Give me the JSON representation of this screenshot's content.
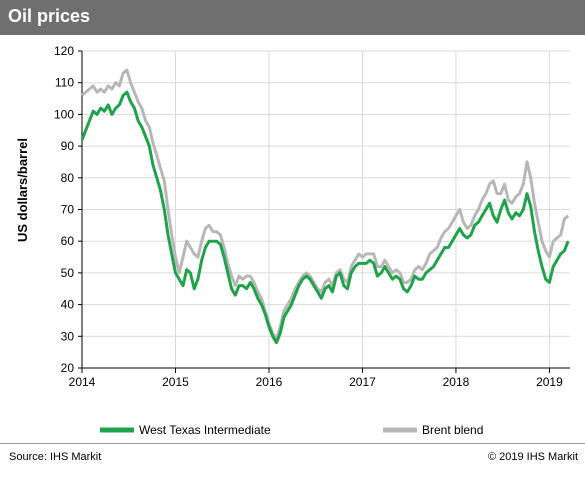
{
  "header": {
    "title": "Oil prices"
  },
  "footer": {
    "source": "Source: IHS Markit",
    "copyright": "© 2019 IHS Markit"
  },
  "colors": {
    "wti": "#1fa34a",
    "brent": "#b7b7b7",
    "header_bg": "#6f6f6f"
  },
  "chart_data": {
    "type": "line",
    "ylabel": "US dollars/barrel",
    "xlabel": "",
    "ylim": [
      20,
      120
    ],
    "xlim": [
      2014,
      2019.22
    ],
    "yticks": [
      20,
      30,
      40,
      50,
      60,
      70,
      80,
      90,
      100,
      110,
      120
    ],
    "xticks": [
      2014,
      2015,
      2016,
      2017,
      2018,
      2019
    ],
    "grid": true,
    "legend_position": "bottom",
    "series": [
      {
        "name": "West Texas Intermediate",
        "color": "#1fa34a",
        "points": [
          [
            2014.0,
            92
          ],
          [
            2014.04,
            95
          ],
          [
            2014.08,
            98
          ],
          [
            2014.12,
            101
          ],
          [
            2014.16,
            100
          ],
          [
            2014.2,
            102
          ],
          [
            2014.24,
            101
          ],
          [
            2014.28,
            103
          ],
          [
            2014.32,
            100
          ],
          [
            2014.36,
            102
          ],
          [
            2014.4,
            103
          ],
          [
            2014.44,
            106
          ],
          [
            2014.48,
            107
          ],
          [
            2014.52,
            104
          ],
          [
            2014.56,
            102
          ],
          [
            2014.6,
            98
          ],
          [
            2014.64,
            96
          ],
          [
            2014.68,
            93
          ],
          [
            2014.72,
            90
          ],
          [
            2014.76,
            84
          ],
          [
            2014.8,
            80
          ],
          [
            2014.84,
            76
          ],
          [
            2014.88,
            70
          ],
          [
            2014.92,
            62
          ],
          [
            2014.96,
            56
          ],
          [
            2015.0,
            50
          ],
          [
            2015.04,
            48
          ],
          [
            2015.08,
            46
          ],
          [
            2015.12,
            51
          ],
          [
            2015.16,
            50
          ],
          [
            2015.2,
            45
          ],
          [
            2015.24,
            48
          ],
          [
            2015.28,
            54
          ],
          [
            2015.32,
            58
          ],
          [
            2015.36,
            60
          ],
          [
            2015.4,
            60
          ],
          [
            2015.44,
            60
          ],
          [
            2015.48,
            59
          ],
          [
            2015.52,
            55
          ],
          [
            2015.56,
            50
          ],
          [
            2015.6,
            45
          ],
          [
            2015.64,
            43
          ],
          [
            2015.68,
            46
          ],
          [
            2015.72,
            46
          ],
          [
            2015.76,
            45
          ],
          [
            2015.8,
            47
          ],
          [
            2015.84,
            45
          ],
          [
            2015.88,
            42
          ],
          [
            2015.92,
            40
          ],
          [
            2015.96,
            37
          ],
          [
            2016.0,
            33
          ],
          [
            2016.04,
            30
          ],
          [
            2016.08,
            28
          ],
          [
            2016.12,
            31
          ],
          [
            2016.16,
            36
          ],
          [
            2016.2,
            38
          ],
          [
            2016.24,
            40
          ],
          [
            2016.28,
            43
          ],
          [
            2016.32,
            46
          ],
          [
            2016.36,
            48
          ],
          [
            2016.4,
            49
          ],
          [
            2016.44,
            48
          ],
          [
            2016.48,
            46
          ],
          [
            2016.52,
            44
          ],
          [
            2016.56,
            42
          ],
          [
            2016.6,
            45
          ],
          [
            2016.64,
            46
          ],
          [
            2016.68,
            44
          ],
          [
            2016.72,
            49
          ],
          [
            2016.76,
            50
          ],
          [
            2016.8,
            46
          ],
          [
            2016.84,
            45
          ],
          [
            2016.88,
            50
          ],
          [
            2016.92,
            52
          ],
          [
            2016.96,
            53
          ],
          [
            2017.0,
            53
          ],
          [
            2017.04,
            53
          ],
          [
            2017.08,
            54
          ],
          [
            2017.12,
            53
          ],
          [
            2017.16,
            49
          ],
          [
            2017.2,
            50
          ],
          [
            2017.24,
            52
          ],
          [
            2017.28,
            50
          ],
          [
            2017.32,
            48
          ],
          [
            2017.36,
            49
          ],
          [
            2017.4,
            48
          ],
          [
            2017.44,
            45
          ],
          [
            2017.48,
            44
          ],
          [
            2017.52,
            46
          ],
          [
            2017.56,
            49
          ],
          [
            2017.6,
            48
          ],
          [
            2017.64,
            48
          ],
          [
            2017.68,
            50
          ],
          [
            2017.72,
            51
          ],
          [
            2017.76,
            52
          ],
          [
            2017.8,
            54
          ],
          [
            2017.84,
            56
          ],
          [
            2017.88,
            58
          ],
          [
            2017.92,
            58
          ],
          [
            2017.96,
            60
          ],
          [
            2018.0,
            62
          ],
          [
            2018.04,
            64
          ],
          [
            2018.08,
            62
          ],
          [
            2018.12,
            61
          ],
          [
            2018.16,
            62
          ],
          [
            2018.2,
            65
          ],
          [
            2018.24,
            66
          ],
          [
            2018.28,
            68
          ],
          [
            2018.32,
            70
          ],
          [
            2018.36,
            72
          ],
          [
            2018.4,
            68
          ],
          [
            2018.44,
            66
          ],
          [
            2018.48,
            70
          ],
          [
            2018.52,
            73
          ],
          [
            2018.56,
            69
          ],
          [
            2018.6,
            67
          ],
          [
            2018.64,
            69
          ],
          [
            2018.68,
            68
          ],
          [
            2018.72,
            70
          ],
          [
            2018.76,
            75
          ],
          [
            2018.8,
            71
          ],
          [
            2018.84,
            63
          ],
          [
            2018.88,
            57
          ],
          [
            2018.92,
            52
          ],
          [
            2018.96,
            48
          ],
          [
            2019.0,
            47
          ],
          [
            2019.04,
            52
          ],
          [
            2019.08,
            54
          ],
          [
            2019.12,
            56
          ],
          [
            2019.16,
            57
          ],
          [
            2019.2,
            60
          ]
        ]
      },
      {
        "name": "Brent blend",
        "color": "#b7b7b7",
        "points": [
          [
            2014.0,
            106
          ],
          [
            2014.04,
            107
          ],
          [
            2014.08,
            108
          ],
          [
            2014.12,
            109
          ],
          [
            2014.16,
            107
          ],
          [
            2014.2,
            108
          ],
          [
            2014.24,
            107
          ],
          [
            2014.28,
            109
          ],
          [
            2014.32,
            108
          ],
          [
            2014.36,
            110
          ],
          [
            2014.4,
            109
          ],
          [
            2014.44,
            113
          ],
          [
            2014.48,
            114
          ],
          [
            2014.52,
            110
          ],
          [
            2014.56,
            107
          ],
          [
            2014.6,
            104
          ],
          [
            2014.64,
            102
          ],
          [
            2014.68,
            98
          ],
          [
            2014.72,
            96
          ],
          [
            2014.76,
            91
          ],
          [
            2014.8,
            87
          ],
          [
            2014.84,
            83
          ],
          [
            2014.88,
            79
          ],
          [
            2014.92,
            70
          ],
          [
            2014.96,
            62
          ],
          [
            2015.0,
            55
          ],
          [
            2015.04,
            50
          ],
          [
            2015.08,
            55
          ],
          [
            2015.12,
            60
          ],
          [
            2015.16,
            58
          ],
          [
            2015.2,
            56
          ],
          [
            2015.24,
            55
          ],
          [
            2015.28,
            60
          ],
          [
            2015.32,
            64
          ],
          [
            2015.36,
            65
          ],
          [
            2015.4,
            63
          ],
          [
            2015.44,
            63
          ],
          [
            2015.48,
            62
          ],
          [
            2015.52,
            58
          ],
          [
            2015.56,
            53
          ],
          [
            2015.6,
            49
          ],
          [
            2015.64,
            46
          ],
          [
            2015.68,
            49
          ],
          [
            2015.72,
            48
          ],
          [
            2015.76,
            49
          ],
          [
            2015.8,
            49
          ],
          [
            2015.84,
            47
          ],
          [
            2015.88,
            44
          ],
          [
            2015.92,
            42
          ],
          [
            2015.96,
            38
          ],
          [
            2016.0,
            34
          ],
          [
            2016.04,
            31
          ],
          [
            2016.08,
            29
          ],
          [
            2016.12,
            33
          ],
          [
            2016.16,
            38
          ],
          [
            2016.2,
            40
          ],
          [
            2016.24,
            42
          ],
          [
            2016.28,
            45
          ],
          [
            2016.32,
            47
          ],
          [
            2016.36,
            49
          ],
          [
            2016.4,
            50
          ],
          [
            2016.44,
            49
          ],
          [
            2016.48,
            47
          ],
          [
            2016.52,
            45
          ],
          [
            2016.56,
            44
          ],
          [
            2016.6,
            47
          ],
          [
            2016.64,
            48
          ],
          [
            2016.68,
            46
          ],
          [
            2016.72,
            50
          ],
          [
            2016.76,
            51
          ],
          [
            2016.8,
            48
          ],
          [
            2016.84,
            47
          ],
          [
            2016.88,
            52
          ],
          [
            2016.92,
            54
          ],
          [
            2016.96,
            56
          ],
          [
            2017.0,
            55
          ],
          [
            2017.04,
            56
          ],
          [
            2017.08,
            56
          ],
          [
            2017.12,
            56
          ],
          [
            2017.16,
            52
          ],
          [
            2017.2,
            52
          ],
          [
            2017.24,
            54
          ],
          [
            2017.28,
            52
          ],
          [
            2017.32,
            50
          ],
          [
            2017.36,
            51
          ],
          [
            2017.4,
            50
          ],
          [
            2017.44,
            47
          ],
          [
            2017.48,
            47
          ],
          [
            2017.52,
            48
          ],
          [
            2017.56,
            51
          ],
          [
            2017.6,
            52
          ],
          [
            2017.64,
            51
          ],
          [
            2017.68,
            53
          ],
          [
            2017.72,
            56
          ],
          [
            2017.76,
            57
          ],
          [
            2017.8,
            58
          ],
          [
            2017.84,
            61
          ],
          [
            2017.88,
            63
          ],
          [
            2017.92,
            64
          ],
          [
            2017.96,
            66
          ],
          [
            2018.0,
            68
          ],
          [
            2018.04,
            70
          ],
          [
            2018.08,
            66
          ],
          [
            2018.12,
            64
          ],
          [
            2018.16,
            65
          ],
          [
            2018.2,
            68
          ],
          [
            2018.24,
            70
          ],
          [
            2018.28,
            73
          ],
          [
            2018.32,
            75
          ],
          [
            2018.36,
            78
          ],
          [
            2018.4,
            79
          ],
          [
            2018.44,
            75
          ],
          [
            2018.48,
            75
          ],
          [
            2018.52,
            78
          ],
          [
            2018.56,
            73
          ],
          [
            2018.6,
            72
          ],
          [
            2018.64,
            74
          ],
          [
            2018.68,
            75
          ],
          [
            2018.72,
            78
          ],
          [
            2018.76,
            85
          ],
          [
            2018.8,
            80
          ],
          [
            2018.84,
            72
          ],
          [
            2018.88,
            66
          ],
          [
            2018.92,
            60
          ],
          [
            2018.96,
            57
          ],
          [
            2019.0,
            55
          ],
          [
            2019.04,
            60
          ],
          [
            2019.08,
            61
          ],
          [
            2019.12,
            62
          ],
          [
            2019.16,
            67
          ],
          [
            2019.2,
            68
          ]
        ]
      }
    ]
  }
}
